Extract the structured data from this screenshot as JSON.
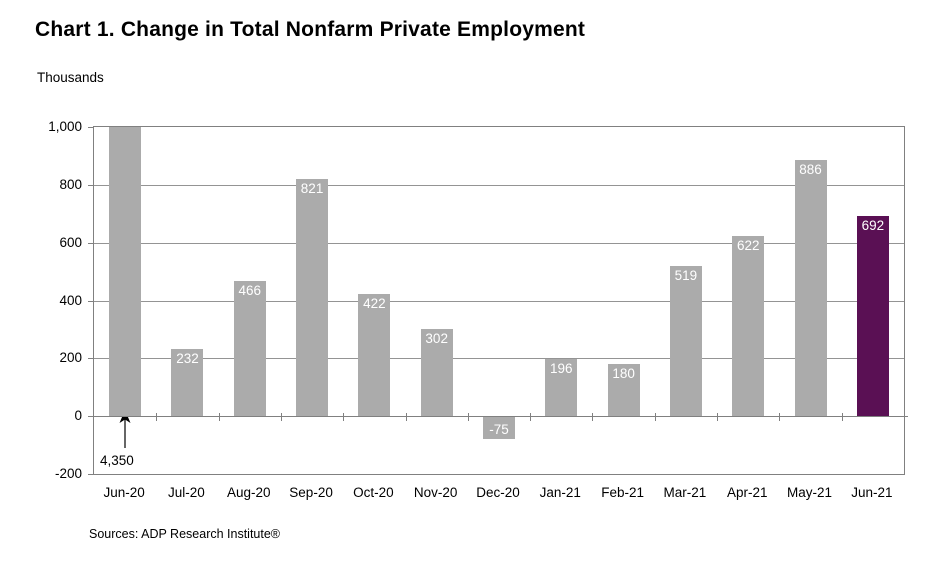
{
  "title": "Chart 1. Change in Total Nonfarm Private Employment",
  "units_label": "Thousands",
  "source": "Sources: ADP Research Institute®",
  "chart_data": {
    "type": "bar",
    "categories": [
      "Jun-20",
      "Jul-20",
      "Aug-20",
      "Sep-20",
      "Oct-20",
      "Nov-20",
      "Dec-20",
      "Jan-21",
      "Feb-21",
      "Mar-21",
      "Apr-21",
      "May-21",
      "Jun-21"
    ],
    "values": [
      4350,
      232,
      466,
      821,
      422,
      302,
      -75,
      196,
      180,
      519,
      622,
      886,
      692
    ],
    "bar_labels": [
      "",
      "232",
      "466",
      "821",
      "422",
      "302",
      "-75",
      "196",
      "180",
      "519",
      "622",
      "886",
      "692"
    ],
    "annotation": {
      "text": "4,350",
      "category": "Jun-20"
    },
    "title": "Chart 1. Change in Total Nonfarm Private Employment",
    "ylabel": "Thousands",
    "xlabel": "",
    "ylim": [
      -200,
      1000
    ],
    "ytick_step": 200,
    "ytick_labels": [
      "1,000",
      "800",
      "600",
      "400",
      "200",
      "0",
      "-200"
    ],
    "clip_max": 1000,
    "grid": "horizontal",
    "legend": "none",
    "colors": {
      "bar": "#ABABAB",
      "highlight_bar": "#5A1054",
      "highlight_category": "Jun-21",
      "bar_label_text": "#FFFFFF",
      "gridline": "#949494",
      "axis": "#808080"
    }
  }
}
